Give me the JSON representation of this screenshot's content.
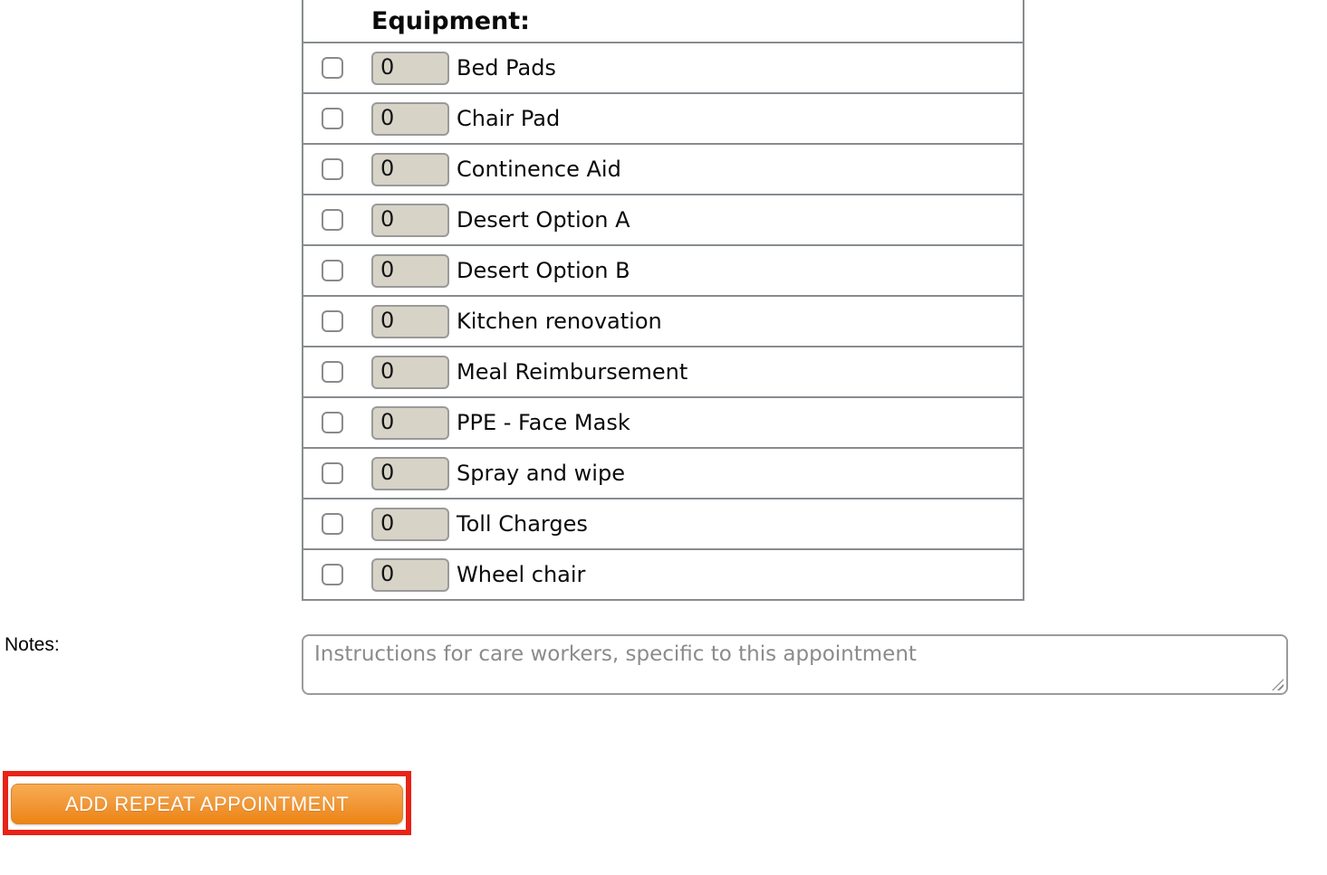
{
  "equipment": {
    "header": "Equipment:",
    "rows": [
      {
        "checked": false,
        "quantity": "0",
        "label": "Bed Pads"
      },
      {
        "checked": false,
        "quantity": "0",
        "label": "Chair Pad"
      },
      {
        "checked": false,
        "quantity": "0",
        "label": "Continence Aid"
      },
      {
        "checked": false,
        "quantity": "0",
        "label": "Desert Option A"
      },
      {
        "checked": false,
        "quantity": "0",
        "label": "Desert Option B"
      },
      {
        "checked": false,
        "quantity": "0",
        "label": "Kitchen renovation"
      },
      {
        "checked": false,
        "quantity": "0",
        "label": "Meal Reimbursement"
      },
      {
        "checked": false,
        "quantity": "0",
        "label": "PPE - Face Mask"
      },
      {
        "checked": false,
        "quantity": "0",
        "label": "Spray and wipe"
      },
      {
        "checked": false,
        "quantity": "0",
        "label": "Toll Charges"
      },
      {
        "checked": false,
        "quantity": "0",
        "label": "Wheel chair"
      }
    ]
  },
  "notes": {
    "label": "Notes:",
    "value": "",
    "placeholder": "Instructions for care workers, specific to this appointment"
  },
  "actions": {
    "add_repeat_appointment_label": "ADD REPEAT APPOINTMENT"
  },
  "colors": {
    "table_border": "#888c90",
    "quantity_input_bg": "#d7d3c7",
    "button_orange_top": "#f8ab52",
    "button_orange_bottom": "#ec8512",
    "annotation_red": "#e82317",
    "placeholder_gray": "#8b8b8b"
  }
}
